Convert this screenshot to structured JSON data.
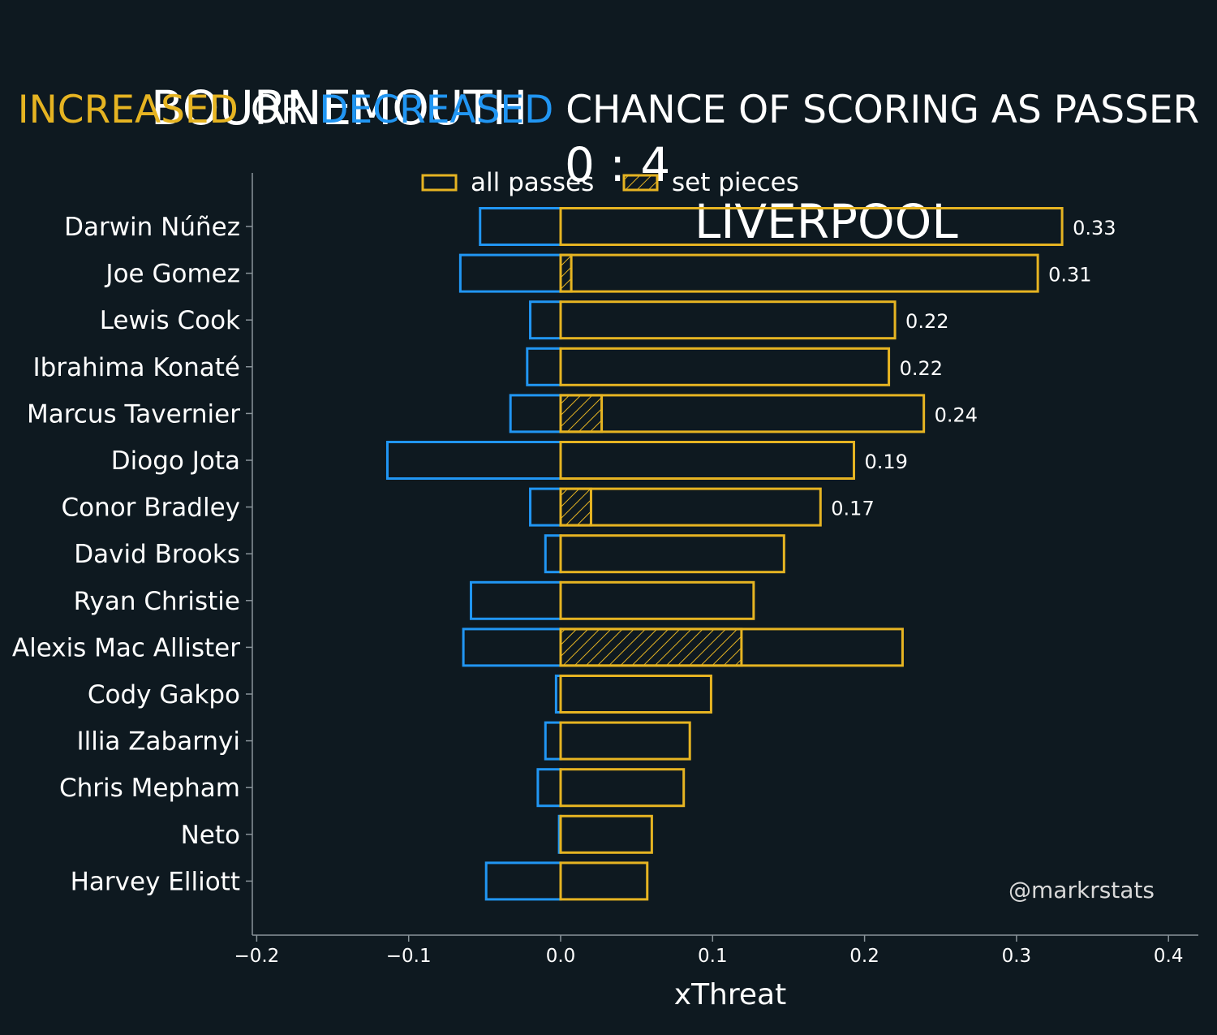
{
  "header": {
    "home_team": "BOURNEMOUTH",
    "score": "0 : 4",
    "away_team": "LIVERPOOL",
    "subtitle_increased": "INCREASED",
    "subtitle_or": " OR ",
    "subtitle_decreased": "DECREASED",
    "subtitle_rest": " CHANCE OF SCORING AS PASSER"
  },
  "colors": {
    "background": "#0e1920",
    "increase": "#e6b422",
    "decrease": "#2196f3",
    "axis": "#8a949a"
  },
  "credit": "@markrstats",
  "chart_data": {
    "type": "bar",
    "orientation": "horizontal",
    "xlabel": "xThreat",
    "xlim": [
      -0.2,
      0.42
    ],
    "xticks": [
      -0.2,
      -0.1,
      0.0,
      0.1,
      0.2,
      0.3,
      0.4
    ],
    "xtick_labels": [
      "−0.2",
      "−0.1",
      "0.0",
      "0.1",
      "0.2",
      "0.3",
      "0.4"
    ],
    "legend": {
      "placement": "top-center",
      "entries": [
        "all passes",
        "set pieces"
      ]
    },
    "categories": [
      "Darwin Núñez",
      "Joe Gomez",
      "Lewis Cook",
      "Ibrahima Konaté",
      "Marcus Tavernier",
      "Diogo Jota",
      "Conor Bradley",
      "David Brooks",
      "Ryan Christie",
      "Alexis Mac Allister",
      "Cody Gakpo",
      "Illia Zabarnyi",
      "Chris Mepham",
      "Neto",
      "Harvey Elliott"
    ],
    "series": [
      {
        "name": "increased",
        "values": [
          0.33,
          0.314,
          0.22,
          0.216,
          0.239,
          0.193,
          0.171,
          0.147,
          0.127,
          0.225,
          0.099,
          0.085,
          0.081,
          0.06,
          0.057
        ]
      },
      {
        "name": "decreased",
        "values": [
          -0.053,
          -0.066,
          -0.02,
          -0.022,
          -0.033,
          -0.114,
          -0.02,
          -0.01,
          -0.059,
          -0.064,
          -0.003,
          -0.01,
          -0.015,
          -0.001,
          -0.049
        ]
      },
      {
        "name": "set pieces",
        "values": [
          0,
          0.007,
          0,
          0,
          0.027,
          0,
          0.02,
          0,
          0,
          0.119,
          0,
          0,
          0,
          0,
          0
        ]
      }
    ],
    "data_labels": [
      "0.33",
      "0.31",
      "0.22",
      "0.22",
      "0.24",
      "0.19",
      "0.17",
      "",
      "",
      "",
      "",
      "",
      "",
      "",
      ""
    ]
  }
}
